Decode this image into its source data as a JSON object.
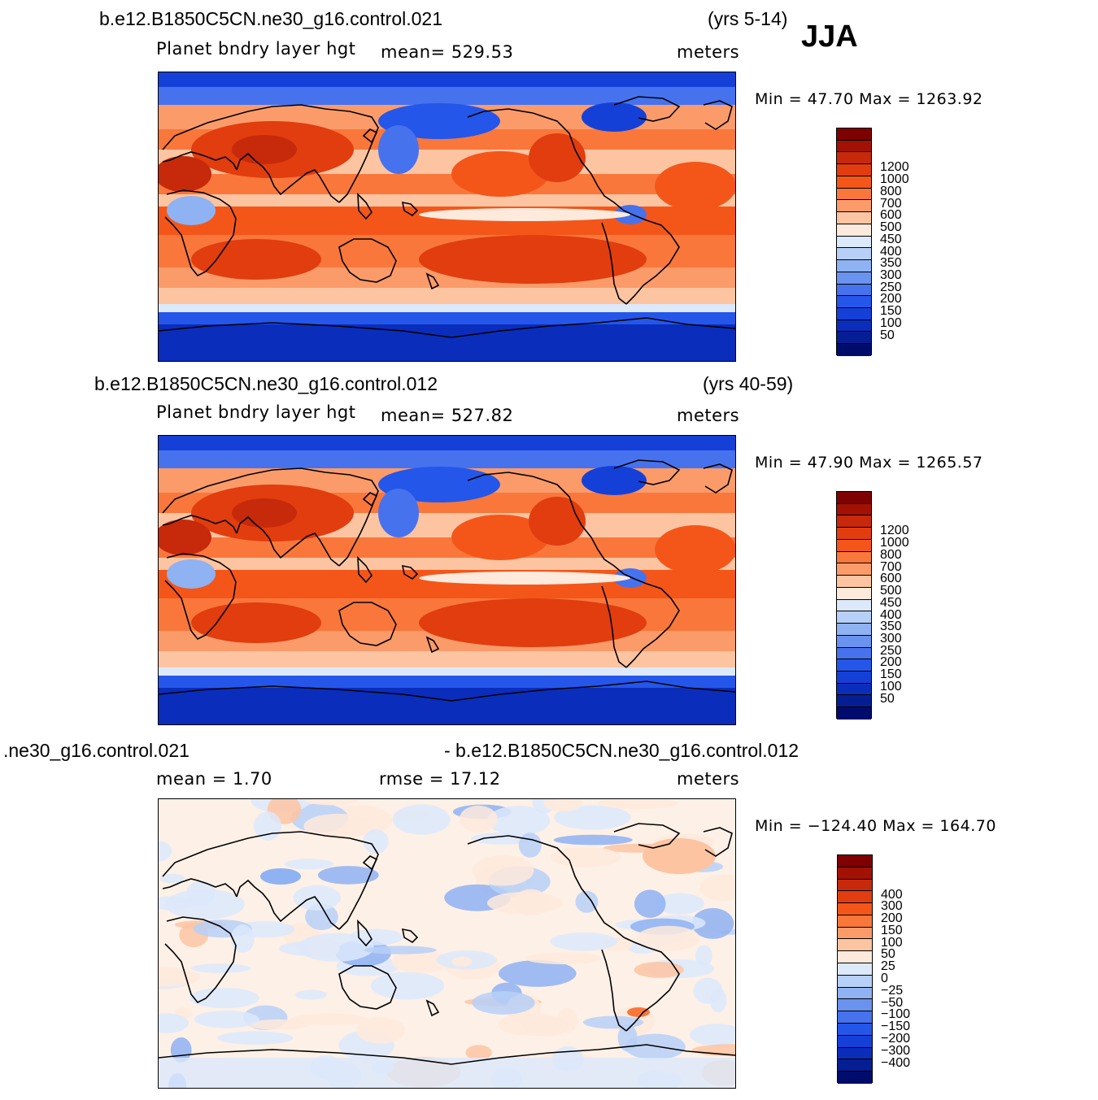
{
  "season": "JJA",
  "panels": [
    {
      "case_title": "b.e12.B1850C5CN.ne30_g16.control.021",
      "years": "(yrs 5-14)",
      "variable": "Planet bndry layer hgt",
      "stat": "mean=  529.53",
      "units": "meters",
      "minmax": "Min =   47.70  Max  =  1263.92",
      "colorbar": {
        "colors": [
          "#7f0000",
          "#a31104",
          "#c7290b",
          "#e13d0f",
          "#f4561a",
          "#f9773b",
          "#fb9b6a",
          "#fdc4a2",
          "#feeadc",
          "#dce9fb",
          "#b7d0f7",
          "#8fb2f2",
          "#6a93ef",
          "#4672ee",
          "#2456ea",
          "#1540d8",
          "#0b2dbb",
          "#061e94",
          "#000c6b"
        ],
        "labels": [
          "1200",
          "1000",
          "800",
          "700",
          "600",
          "500",
          "450",
          "400",
          "350",
          "300",
          "250",
          "200",
          "150",
          "100",
          "50"
        ]
      },
      "map_style": "hot"
    },
    {
      "case_title": "b.e12.B1850C5CN.ne30_g16.control.012",
      "years": "(yrs 40-59)",
      "variable": "Planet bndry layer hgt",
      "stat": "mean=  527.82",
      "units": "meters",
      "minmax": "Min =   47.90  Max  =  1265.57",
      "colorbar": {
        "colors": [
          "#7f0000",
          "#a31104",
          "#c7290b",
          "#e13d0f",
          "#f4561a",
          "#f9773b",
          "#fb9b6a",
          "#fdc4a2",
          "#feeadc",
          "#dce9fb",
          "#b7d0f7",
          "#8fb2f2",
          "#6a93ef",
          "#4672ee",
          "#2456ea",
          "#1540d8",
          "#0b2dbb",
          "#061e94",
          "#000c6b"
        ],
        "labels": [
          "1200",
          "1000",
          "800",
          "700",
          "600",
          "500",
          "450",
          "400",
          "350",
          "300",
          "250",
          "200",
          "150",
          "100",
          "50"
        ]
      },
      "map_style": "hot"
    },
    {
      "case_title_left": ".ne30_g16.control.021",
      "case_title_right": "- b.e12.B1850C5CN.ne30_g16.control.012",
      "stat": "mean =     1.70",
      "rmse": "rmse  =    17.12",
      "units": "meters",
      "minmax": "Min  = −124.40  Max  =  164.70",
      "colorbar": {
        "colors": [
          "#7f0000",
          "#a31104",
          "#c7290b",
          "#e13d0f",
          "#f4561a",
          "#f9773b",
          "#fb9b6a",
          "#fdc4a2",
          "#feeadc",
          "#dce9fb",
          "#b7d0f7",
          "#8fb2f2",
          "#6a93ef",
          "#4672ee",
          "#2456ea",
          "#1540d8",
          "#0b2dbb",
          "#061e94",
          "#000c6b"
        ],
        "labels": [
          "400",
          "300",
          "200",
          "150",
          "100",
          "50",
          "25",
          "0",
          "−25",
          "−50",
          "−100",
          "−150",
          "−200",
          "−300",
          "−400"
        ]
      },
      "map_style": "diff"
    }
  ]
}
